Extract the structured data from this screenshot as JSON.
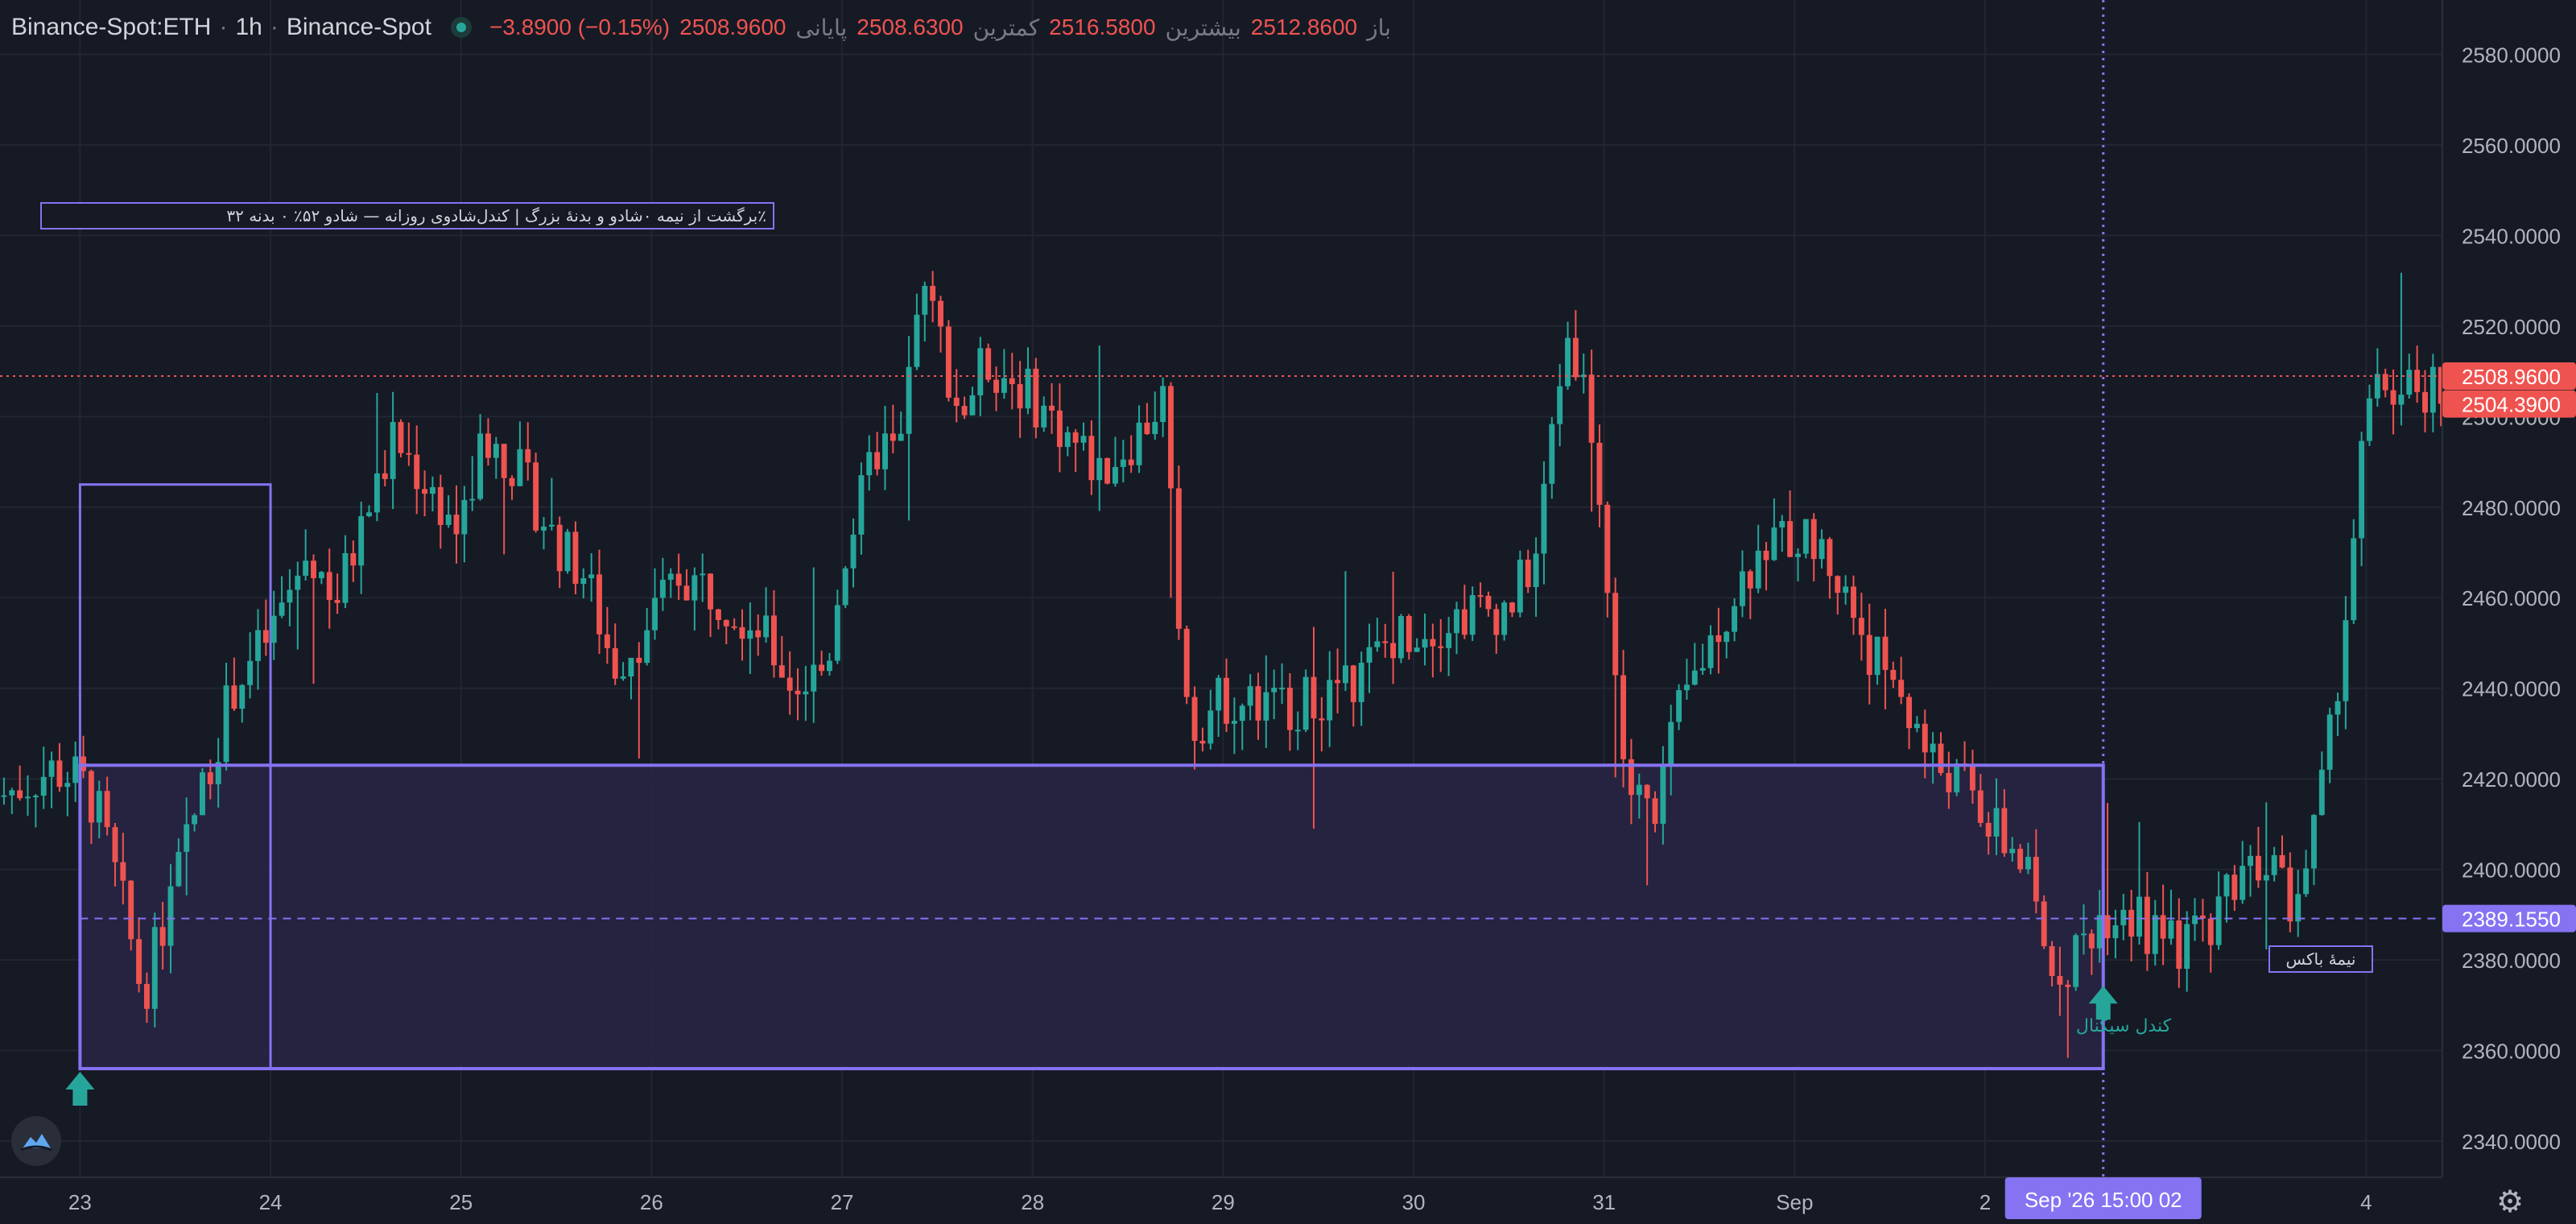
{
  "header": {
    "symbol": "Binance-Spot:ETH",
    "interval": "1h",
    "exchange": "Binance-Spot",
    "ohlc": [
      {
        "label": "باز",
        "value": "2512.8600"
      },
      {
        "label": "بیشترین",
        "value": "2516.5800"
      },
      {
        "label": "کمترین",
        "value": "2508.6300"
      },
      {
        "label": "پایانی",
        "value": "2508.9600"
      }
    ],
    "change": "−3.8900 (−0.15%)"
  },
  "annotations": {
    "strategy_label": "٪برگشت از نیمه ۰شادو و بدنهٔ بزرگ | کندل‌شادوی روزانه — شادو ۵۲٪ ۰ بدنه ۳۲",
    "midline_label": "نیمهٔ باکس",
    "signal_label": "کندل سیگنال"
  },
  "price_tags": {
    "last": "2508.9600",
    "prev": "2504.3900",
    "mid": "2389.1550"
  },
  "crosshair_time": "Sep '26   15:00 02",
  "colors": {
    "bg": "#161a25",
    "grid": "#222632",
    "up": "#26a69a",
    "down": "#ef5350",
    "box": "#8573f2",
    "box_fill": "#272543"
  },
  "chart_data": {
    "type": "candlestick",
    "symbol": "Binance-Spot:ETH",
    "interval": "1h",
    "y_ticks": [
      2340,
      2360,
      2380,
      2400,
      2420,
      2440,
      2460,
      2480,
      2500,
      2520,
      2540,
      2560,
      2580
    ],
    "ylim": [
      2332,
      2592
    ],
    "x_ticks": [
      {
        "label": "23",
        "day": 0
      },
      {
        "label": "24",
        "day": 1
      },
      {
        "label": "25",
        "day": 2
      },
      {
        "label": "26",
        "day": 3
      },
      {
        "label": "27",
        "day": 4
      },
      {
        "label": "28",
        "day": 5
      },
      {
        "label": "29",
        "day": 6
      },
      {
        "label": "30",
        "day": 7
      },
      {
        "label": "31",
        "day": 8
      },
      {
        "label": "Sep",
        "day": 9
      },
      {
        "label": "2",
        "day": 10
      },
      {
        "label": "4",
        "day": 12
      }
    ],
    "xlim": [
      -0.42,
      12.4
    ],
    "last_price": 2508.96,
    "box": {
      "day_start": 0,
      "day_end": 10.62,
      "low": 2356,
      "high": 2423,
      "mid": 2389.155
    },
    "day_box": {
      "day_start": 0,
      "day_end": 1,
      "low": 2356,
      "high": 2485
    },
    "crosshair_day": 10.62,
    "signal_arrows": [
      {
        "day": 0,
        "price": 2356
      },
      {
        "day": 10.62,
        "price": 2375
      }
    ],
    "daily_path": [
      [
        -0.42,
        2416
      ],
      [
        -0.15,
        2422
      ],
      [
        0,
        2420
      ],
      [
        0.1,
        2412
      ],
      [
        0.22,
        2393
      ],
      [
        0.33,
        2372
      ],
      [
        0.45,
        2390
      ],
      [
        0.6,
        2412
      ],
      [
        0.8,
        2440
      ],
      [
        1,
        2452
      ],
      [
        1.2,
        2470
      ],
      [
        1.35,
        2460
      ],
      [
        1.5,
        2478
      ],
      [
        1.65,
        2495
      ],
      [
        1.82,
        2485
      ],
      [
        2,
        2474
      ],
      [
        2.12,
        2496
      ],
      [
        2.3,
        2488
      ],
      [
        2.5,
        2472
      ],
      [
        2.65,
        2465
      ],
      [
        2.8,
        2445
      ],
      [
        2.95,
        2452
      ],
      [
        3.15,
        2465
      ],
      [
        3.35,
        2461
      ],
      [
        3.55,
        2454
      ],
      [
        3.75,
        2440
      ],
      [
        3.92,
        2445
      ],
      [
        4,
        2468
      ],
      [
        4.2,
        2495
      ],
      [
        4.3,
        2490
      ],
      [
        4.4,
        2528
      ],
      [
        4.5,
        2520
      ],
      [
        4.62,
        2500
      ],
      [
        4.75,
        2512
      ],
      [
        4.9,
        2508
      ],
      [
        5.05,
        2502
      ],
      [
        5.2,
        2495
      ],
      [
        5.35,
        2488
      ],
      [
        5.55,
        2496
      ],
      [
        5.7,
        2505
      ],
      [
        5.75,
        2455
      ],
      [
        5.85,
        2432
      ],
      [
        6,
        2438
      ],
      [
        6.2,
        2436
      ],
      [
        6.45,
        2437
      ],
      [
        6.7,
        2442
      ],
      [
        6.9,
        2452
      ],
      [
        7.1,
        2454
      ],
      [
        7.3,
        2457
      ],
      [
        7.5,
        2458
      ],
      [
        7.65,
        2470
      ],
      [
        7.75,
        2505
      ],
      [
        7.82,
        2520
      ],
      [
        7.95,
        2495
      ],
      [
        8.05,
        2445
      ],
      [
        8.12,
        2418
      ],
      [
        8.25,
        2412
      ],
      [
        8.4,
        2435
      ],
      [
        8.55,
        2450
      ],
      [
        8.7,
        2463
      ],
      [
        8.85,
        2472
      ],
      [
        9,
        2474
      ],
      [
        9.15,
        2470
      ],
      [
        9.25,
        2462
      ],
      [
        9.4,
        2448
      ],
      [
        9.55,
        2440
      ],
      [
        9.7,
        2425
      ],
      [
        9.9,
        2418
      ],
      [
        10.05,
        2408
      ],
      [
        10.2,
        2402
      ],
      [
        10.33,
        2378
      ],
      [
        10.45,
        2380
      ],
      [
        10.6,
        2390
      ],
      [
        10.75,
        2392
      ],
      [
        10.9,
        2384
      ],
      [
        11.05,
        2383
      ],
      [
        11.2,
        2390
      ],
      [
        11.35,
        2402
      ],
      [
        11.5,
        2403
      ],
      [
        11.6,
        2392
      ],
      [
        11.7,
        2402
      ],
      [
        11.8,
        2425
      ],
      [
        11.9,
        2460
      ],
      [
        12,
        2500
      ],
      [
        12.1,
        2507
      ],
      [
        12.2,
        2504
      ],
      [
        12.4,
        2508
      ]
    ]
  }
}
